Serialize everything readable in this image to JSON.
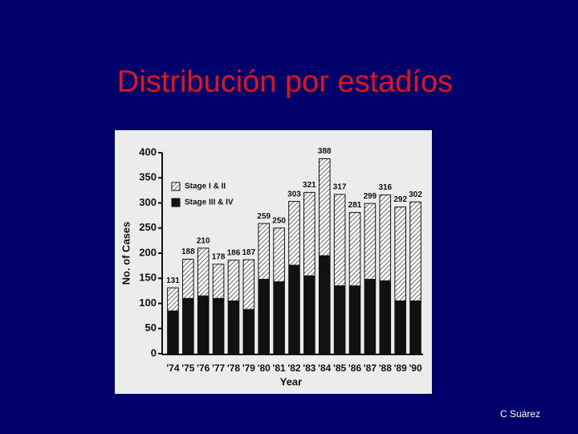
{
  "title": "Distribución por estadíos",
  "footer": "C Suárez",
  "chart_data": {
    "type": "stacked_bar",
    "xlabel": "Year",
    "ylabel": "No. of Cases",
    "categories": [
      "'74",
      "'75",
      "'76",
      "'77",
      "'78",
      "'79",
      "'80",
      "'81",
      "'82",
      "'83",
      "'84",
      "'85",
      "'86",
      "'87",
      "'88",
      "'89",
      "'90"
    ],
    "series": [
      {
        "name": "Stage I & II",
        "color": "#444444",
        "pattern": "hatch",
        "values": [
          46,
          78,
          95,
          68,
          81,
          99,
          111,
          107,
          127,
          166,
          193,
          182,
          146,
          151,
          171,
          187,
          197
        ]
      },
      {
        "name": "Stage III & IV",
        "color": "#111111",
        "pattern": "solid",
        "values": [
          85,
          110,
          115,
          110,
          105,
          88,
          148,
          143,
          176,
          155,
          195,
          135,
          135,
          148,
          145,
          105,
          105
        ]
      }
    ],
    "totals": [
      131,
      188,
      210,
      178,
      186,
      187,
      259,
      250,
      303,
      321,
      388,
      317,
      281,
      299,
      316,
      292,
      302
    ],
    "ylim": [
      0,
      400
    ],
    "yticks": [
      0,
      50,
      100,
      150,
      200,
      250,
      300,
      350,
      400
    ],
    "legend": "top-left"
  }
}
